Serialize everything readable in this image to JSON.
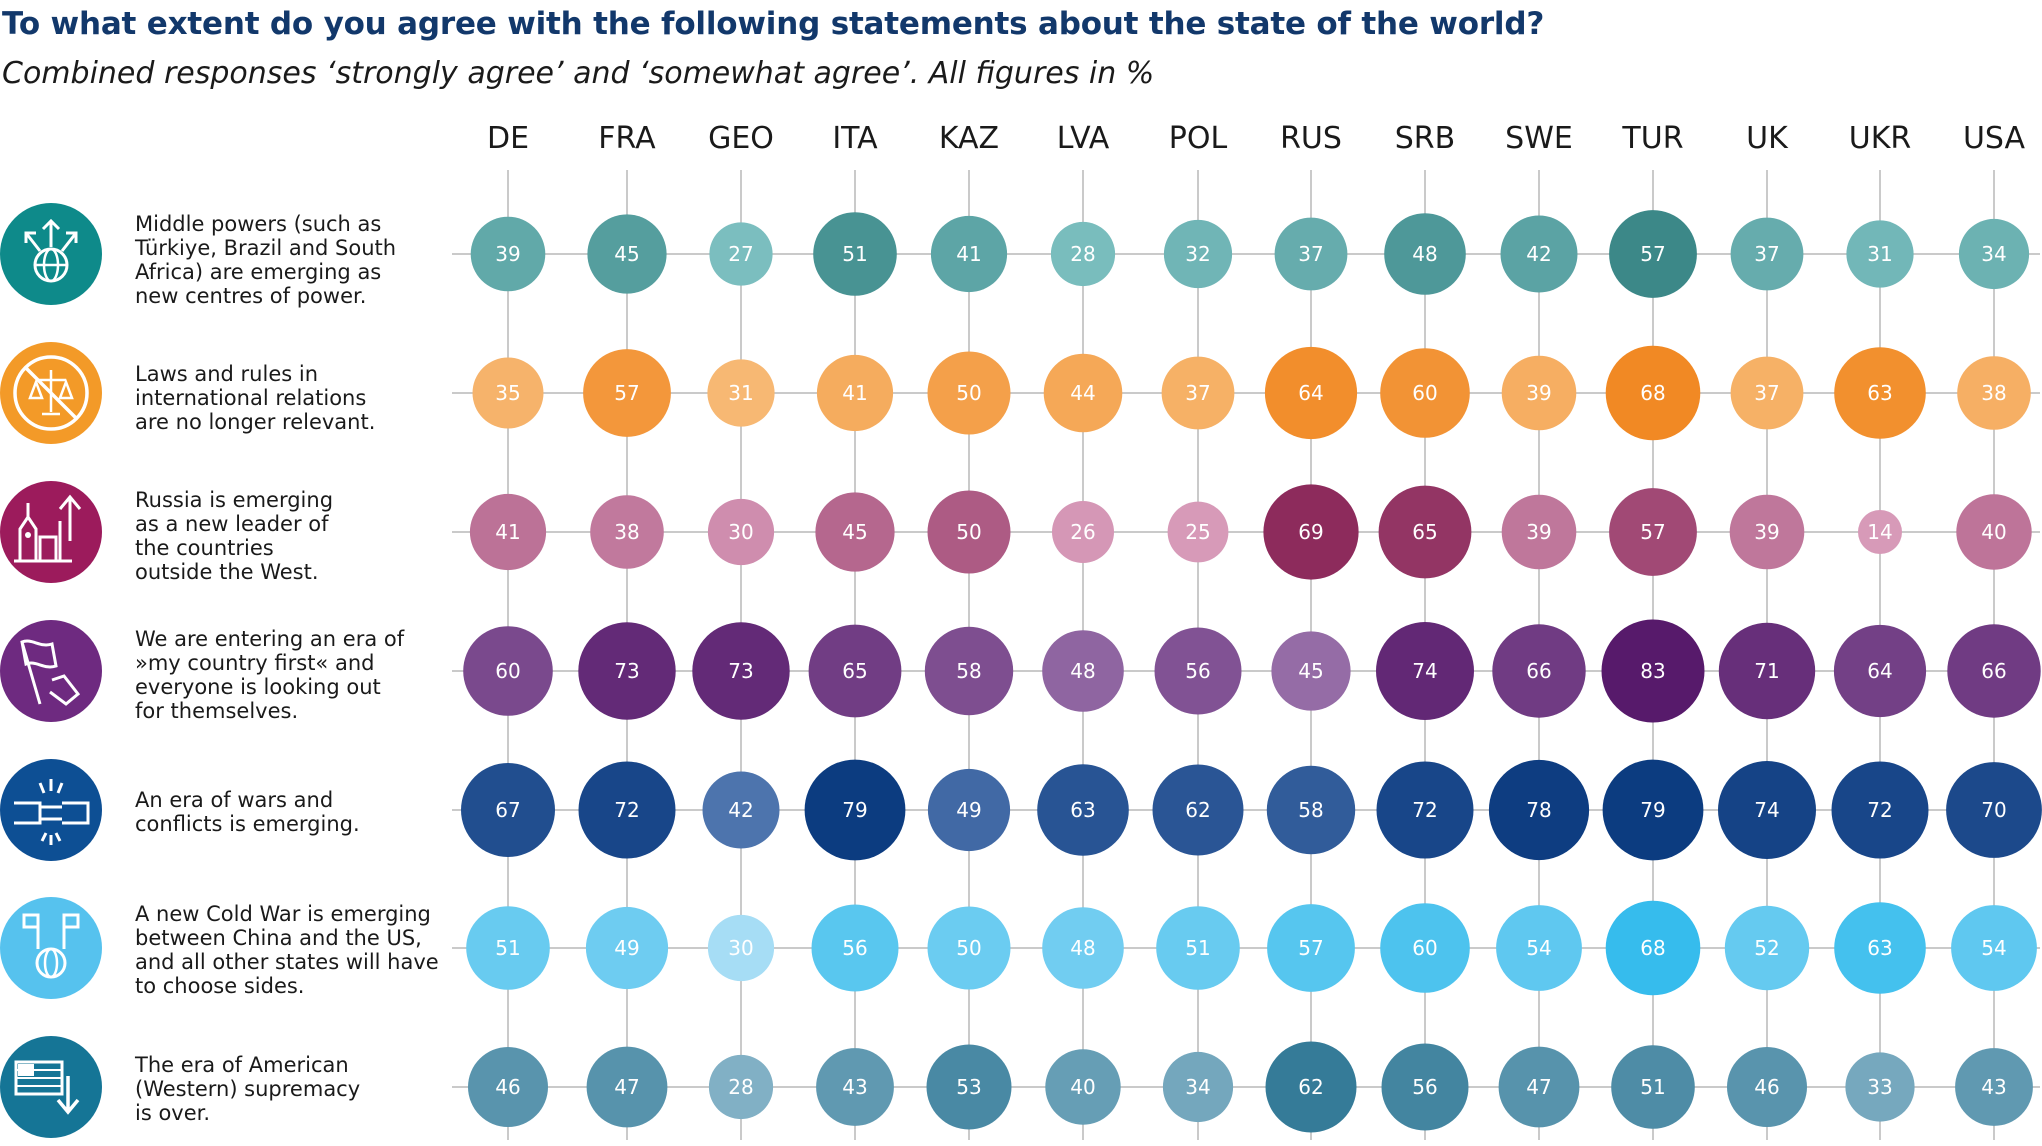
{
  "header": {
    "title": "To what extent do you agree with the following statements about the state of the world?",
    "subtitle": "Combined responses ‘strongly agree’ and ‘somewhat agree’. All figures in %"
  },
  "rows": [
    {
      "text": "Middle powers (such as\nTürkiye, Brazil and South\nAfrica) are emerging as\nnew centres of power.",
      "icon": "globe-arrows-icon",
      "color": "#0e8a8a"
    },
    {
      "text": "Laws and rules in\ninternational relations\nare no longer relevant.",
      "icon": "crossed-scales-icon",
      "color": "#f39a28"
    },
    {
      "text": "Russia is emerging\nas a new leader of\nthe countries\noutside the West.",
      "icon": "kremlin-arrow-icon",
      "color": "#9c1b5c"
    },
    {
      "text": "We are entering an era of\n»my country first« and\neveryone is looking out\nfor themselves.",
      "icon": "hand-flag-icon",
      "color": "#6e2a80"
    },
    {
      "text": "An era of wars and\nconflicts is emerging.",
      "icon": "clashing-fists-icon",
      "color": "#0d4f94"
    },
    {
      "text": "A new Cold War is emerging\nbetween China and the US,\nand all other states will have\nto choose sides.",
      "icon": "globe-flags-icon",
      "color": "#56c2ee"
    },
    {
      "text": "The era of American\n(Western) supremacy\nis over.",
      "icon": "us-flag-down-arrow-icon",
      "color": "#157596"
    }
  ],
  "chart_data": {
    "type": "bubble-matrix",
    "title": "To what extent do you agree with the following statements about the state of the world?",
    "subtitle": "Combined responses ‘strongly agree’ and ‘somewhat agree’. All figures in %",
    "categories": [
      "DE",
      "FRA",
      "GEO",
      "ITA",
      "KAZ",
      "LVA",
      "POL",
      "RUS",
      "SRB",
      "SWE",
      "TUR",
      "UK",
      "UKR",
      "USA"
    ],
    "series": [
      {
        "values": [
          39,
          45,
          27,
          51,
          41,
          28,
          32,
          37,
          48,
          42,
          57,
          37,
          31,
          34
        ]
      },
      {
        "values": [
          35,
          57,
          31,
          41,
          50,
          44,
          37,
          64,
          60,
          39,
          68,
          37,
          63,
          38
        ]
      },
      {
        "values": [
          41,
          38,
          30,
          45,
          50,
          26,
          25,
          69,
          65,
          39,
          57,
          39,
          14,
          40
        ]
      },
      {
        "values": [
          60,
          73,
          73,
          65,
          58,
          48,
          56,
          45,
          74,
          66,
          83,
          71,
          64,
          66
        ]
      },
      {
        "values": [
          67,
          72,
          42,
          79,
          49,
          63,
          62,
          58,
          72,
          78,
          79,
          74,
          72,
          70
        ]
      },
      {
        "values": [
          51,
          49,
          30,
          56,
          50,
          48,
          51,
          57,
          60,
          54,
          68,
          52,
          63,
          54
        ]
      },
      {
        "values": [
          46,
          47,
          28,
          43,
          53,
          40,
          34,
          62,
          56,
          47,
          51,
          46,
          33,
          43
        ]
      }
    ],
    "palettes": [
      [
        "#7fc2c3",
        "#0b5e5e"
      ],
      [
        "#f8c080",
        "#ef7a0a"
      ],
      [
        "#d79ab8",
        "#7a0f45"
      ],
      [
        "#b89bc8",
        "#571a6b"
      ],
      [
        "#6b8ec2",
        "#0a3a7f"
      ],
      [
        "#b5e1f6",
        "#12b2ea"
      ],
      [
        "#88b5c9",
        "#0d5f80"
      ]
    ]
  }
}
